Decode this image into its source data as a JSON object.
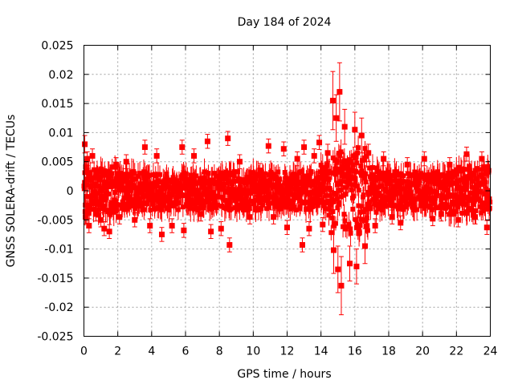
{
  "chart_data": {
    "type": "scatter",
    "title": "Day 184 of 2024",
    "xlabel": "GPS time / hours",
    "ylabel": "GNSS SOLERA-drift / TECUs",
    "xlim": [
      0,
      24
    ],
    "ylim": [
      -0.025,
      0.025
    ],
    "x_ticks": [
      0,
      2,
      4,
      6,
      8,
      10,
      12,
      14,
      16,
      18,
      20,
      22,
      24
    ],
    "x_tick_labels": [
      "0",
      "2",
      "4",
      "6",
      "8",
      "10",
      "12",
      "14",
      "16",
      "18",
      "20",
      "22",
      "24"
    ],
    "y_ticks": [
      0.025,
      0.02,
      0.015,
      0.01,
      0.005,
      0,
      -0.005,
      -0.01,
      -0.015,
      -0.02,
      -0.025
    ],
    "y_tick_labels": [
      "0.025",
      "0.02",
      "0.015",
      "0.01",
      "0.005",
      "0",
      "-0.005",
      "-0.01",
      "-0.015",
      "-0.02",
      "-0.025"
    ],
    "grid": true,
    "marker": "square",
    "error_bars": true,
    "color": "#ff0000",
    "series": [
      {
        "points": [
          {
            "x": 0.05,
            "y": 0.008,
            "err": 0.0015
          },
          {
            "x": 0.1,
            "y": -0.0045,
            "err": 0.0012
          },
          {
            "x": 0.2,
            "y": 0.0055,
            "err": 0.0012
          },
          {
            "x": 0.3,
            "y": -0.006,
            "err": 0.0012
          },
          {
            "x": 0.5,
            "y": 0.006,
            "err": 0.0012
          },
          {
            "x": 0.7,
            "y": -0.004,
            "err": 0.0012
          },
          {
            "x": 1.0,
            "y": -0.005,
            "err": 0.0012
          },
          {
            "x": 1.2,
            "y": -0.0065,
            "err": 0.0012
          },
          {
            "x": 1.5,
            "y": -0.007,
            "err": 0.0012
          },
          {
            "x": 1.9,
            "y": 0.0045,
            "err": 0.0012
          },
          {
            "x": 2.1,
            "y": -0.0045,
            "err": 0.0012
          },
          {
            "x": 2.5,
            "y": 0.005,
            "err": 0.0012
          },
          {
            "x": 3.0,
            "y": -0.005,
            "err": 0.0012
          },
          {
            "x": 3.6,
            "y": 0.0075,
            "err": 0.0012
          },
          {
            "x": 3.9,
            "y": -0.006,
            "err": 0.0012
          },
          {
            "x": 4.3,
            "y": 0.006,
            "err": 0.0012
          },
          {
            "x": 4.6,
            "y": -0.0075,
            "err": 0.0012
          },
          {
            "x": 5.2,
            "y": -0.006,
            "err": 0.0012
          },
          {
            "x": 5.8,
            "y": 0.0075,
            "err": 0.0012
          },
          {
            "x": 5.9,
            "y": -0.0068,
            "err": 0.0012
          },
          {
            "x": 6.5,
            "y": 0.006,
            "err": 0.0012
          },
          {
            "x": 6.9,
            "y": -0.004,
            "err": 0.0012
          },
          {
            "x": 7.3,
            "y": 0.0085,
            "err": 0.0012
          },
          {
            "x": 7.5,
            "y": -0.007,
            "err": 0.0012
          },
          {
            "x": 8.1,
            "y": -0.0065,
            "err": 0.0012
          },
          {
            "x": 8.5,
            "y": 0.009,
            "err": 0.0012
          },
          {
            "x": 8.6,
            "y": -0.0093,
            "err": 0.0012
          },
          {
            "x": 9.2,
            "y": 0.005,
            "err": 0.0012
          },
          {
            "x": 9.8,
            "y": -0.0045,
            "err": 0.0012
          },
          {
            "x": 10.4,
            "y": 0.0035,
            "err": 0.0012
          },
          {
            "x": 10.9,
            "y": 0.0077,
            "err": 0.0012
          },
          {
            "x": 11.2,
            "y": -0.0045,
            "err": 0.0012
          },
          {
            "x": 11.8,
            "y": 0.0072,
            "err": 0.0012
          },
          {
            "x": 12.0,
            "y": -0.0063,
            "err": 0.0012
          },
          {
            "x": 12.6,
            "y": 0.0055,
            "err": 0.0012
          },
          {
            "x": 12.9,
            "y": -0.0093,
            "err": 0.0012
          },
          {
            "x": 13.0,
            "y": 0.0075,
            "err": 0.0012
          },
          {
            "x": 13.3,
            "y": -0.0065,
            "err": 0.0012
          },
          {
            "x": 13.6,
            "y": 0.006,
            "err": 0.0012
          },
          {
            "x": 13.9,
            "y": 0.0083,
            "err": 0.0012
          },
          {
            "x": 14.1,
            "y": -0.0058,
            "err": 0.0012
          },
          {
            "x": 14.4,
            "y": 0.0065,
            "err": 0.0015
          },
          {
            "x": 14.7,
            "y": 0.0155,
            "err": 0.005
          },
          {
            "x": 14.75,
            "y": -0.0102,
            "err": 0.004
          },
          {
            "x": 14.9,
            "y": 0.0125,
            "err": 0.004
          },
          {
            "x": 15.0,
            "y": -0.0135,
            "err": 0.004
          },
          {
            "x": 15.1,
            "y": 0.017,
            "err": 0.005
          },
          {
            "x": 15.2,
            "y": -0.0163,
            "err": 0.005
          },
          {
            "x": 15.4,
            "y": 0.011,
            "err": 0.003
          },
          {
            "x": 15.7,
            "y": -0.0125,
            "err": 0.003
          },
          {
            "x": 16.0,
            "y": 0.0105,
            "err": 0.003
          },
          {
            "x": 16.1,
            "y": -0.013,
            "err": 0.003
          },
          {
            "x": 16.4,
            "y": 0.0095,
            "err": 0.003
          },
          {
            "x": 16.6,
            "y": -0.0095,
            "err": 0.003
          },
          {
            "x": 16.8,
            "y": 0.0065,
            "err": 0.0015
          },
          {
            "x": 17.2,
            "y": -0.006,
            "err": 0.0012
          },
          {
            "x": 17.7,
            "y": 0.0055,
            "err": 0.0012
          },
          {
            "x": 18.2,
            "y": -0.0045,
            "err": 0.0012
          },
          {
            "x": 18.7,
            "y": -0.0055,
            "err": 0.0012
          },
          {
            "x": 19.1,
            "y": 0.0045,
            "err": 0.0012
          },
          {
            "x": 20.1,
            "y": 0.0055,
            "err": 0.0012
          },
          {
            "x": 20.6,
            "y": -0.0048,
            "err": 0.0012
          },
          {
            "x": 21.1,
            "y": -0.004,
            "err": 0.0012
          },
          {
            "x": 21.6,
            "y": 0.0045,
            "err": 0.0012
          },
          {
            "x": 22.1,
            "y": -0.005,
            "err": 0.0012
          },
          {
            "x": 22.6,
            "y": 0.0063,
            "err": 0.0012
          },
          {
            "x": 23.1,
            "y": -0.0045,
            "err": 0.0012
          },
          {
            "x": 23.5,
            "y": 0.0055,
            "err": 0.0012
          },
          {
            "x": 23.8,
            "y": -0.0063,
            "err": 0.0012
          }
        ]
      }
    ]
  }
}
